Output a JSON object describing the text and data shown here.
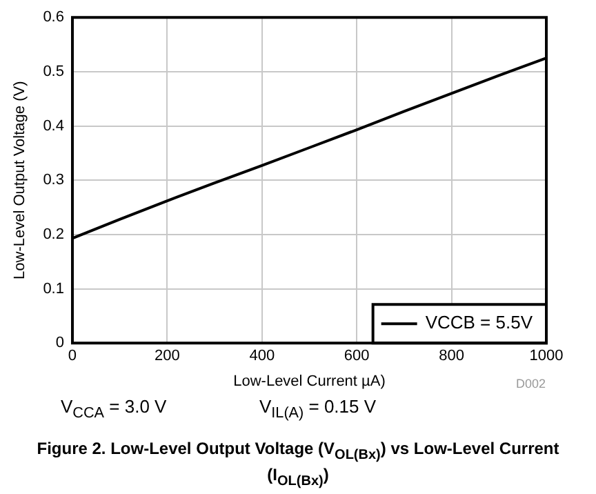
{
  "chart_data": {
    "type": "line",
    "title": "Figure 2. Low-Level Output Voltage (V$_{OL(Bx)}$) vs Low-Level Current (I$_{OL(Bx)}$)",
    "xlabel": "Low-Level Current µA)",
    "ylabel": "Low-Level Output Voltage (V)",
    "x": [
      0,
      100,
      200,
      300,
      400,
      500,
      600,
      700,
      800,
      900,
      1000
    ],
    "series": [
      {
        "name": "VCCB = 5.5V",
        "color": "#000000",
        "values": [
          0.193,
          0.228,
          0.262,
          0.295,
          0.327,
          0.36,
          0.393,
          0.427,
          0.46,
          0.493,
          0.525
        ]
      }
    ],
    "xlim": [
      0,
      1000
    ],
    "xticks": [
      0,
      200,
      400,
      600,
      800,
      1000
    ],
    "ylim": [
      0,
      0.6
    ],
    "yticks": [
      0,
      0.1,
      0.2,
      0.3,
      0.4,
      0.5,
      0.6
    ],
    "grid": true,
    "legend": "bottom right",
    "marker": "none",
    "line_style": "solid",
    "annotations": [
      "D002",
      "V$_{CCA}$ = 3.0 V",
      "V$_{IL(A)}$ = 0.15 V"
    ]
  }
}
